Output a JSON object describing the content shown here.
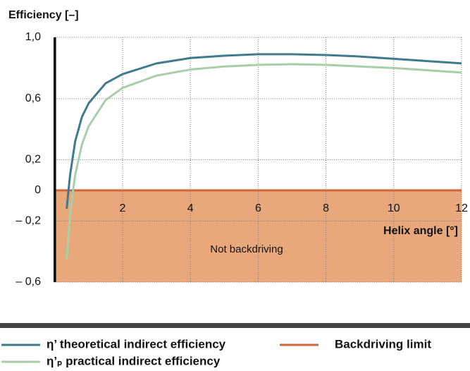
{
  "chart_data": {
    "type": "line",
    "y_axis_label": "Efficiency [–]",
    "x_axis_label": "Helix angle [°]",
    "annotation": "Not backdriving",
    "x": [
      0.35,
      0.45,
      0.6,
      0.8,
      1,
      1.5,
      2,
      3,
      4,
      5,
      6,
      7,
      8,
      9,
      10,
      11,
      12
    ],
    "series": [
      {
        "name": "η’ theoretical indirect efficiency",
        "color": "#3f7a8f",
        "values": [
          -0.12,
          0.1,
          0.32,
          0.48,
          0.57,
          0.7,
          0.76,
          0.83,
          0.865,
          0.88,
          0.89,
          0.89,
          0.885,
          0.875,
          0.86,
          0.845,
          0.83
        ]
      },
      {
        "name": "η’ₚ practical indirect efficiency",
        "color": "#a8cfa8",
        "values": [
          -0.45,
          -0.15,
          0.1,
          0.3,
          0.42,
          0.59,
          0.67,
          0.75,
          0.79,
          0.81,
          0.82,
          0.825,
          0.82,
          0.81,
          0.8,
          0.785,
          0.77
        ]
      }
    ],
    "limit": {
      "name": "Backdriving limit",
      "value": 0,
      "color": "#d0663a",
      "fill": "#e9a87c"
    },
    "xlim": [
      0,
      12
    ],
    "xticks": [
      2,
      4,
      6,
      8,
      10,
      12
    ],
    "ylim": [
      -0.6,
      1.0
    ],
    "yticks": [
      {
        "value": 1.0,
        "label": "1,0"
      },
      {
        "value": 0.6,
        "label": "0,6"
      },
      {
        "value": 0.2,
        "label": "0,2"
      },
      0,
      {
        "value": -0.2,
        "label": "– 0,2"
      },
      {
        "value": -0.6,
        "label": "– 0,6"
      }
    ],
    "grid": true
  }
}
